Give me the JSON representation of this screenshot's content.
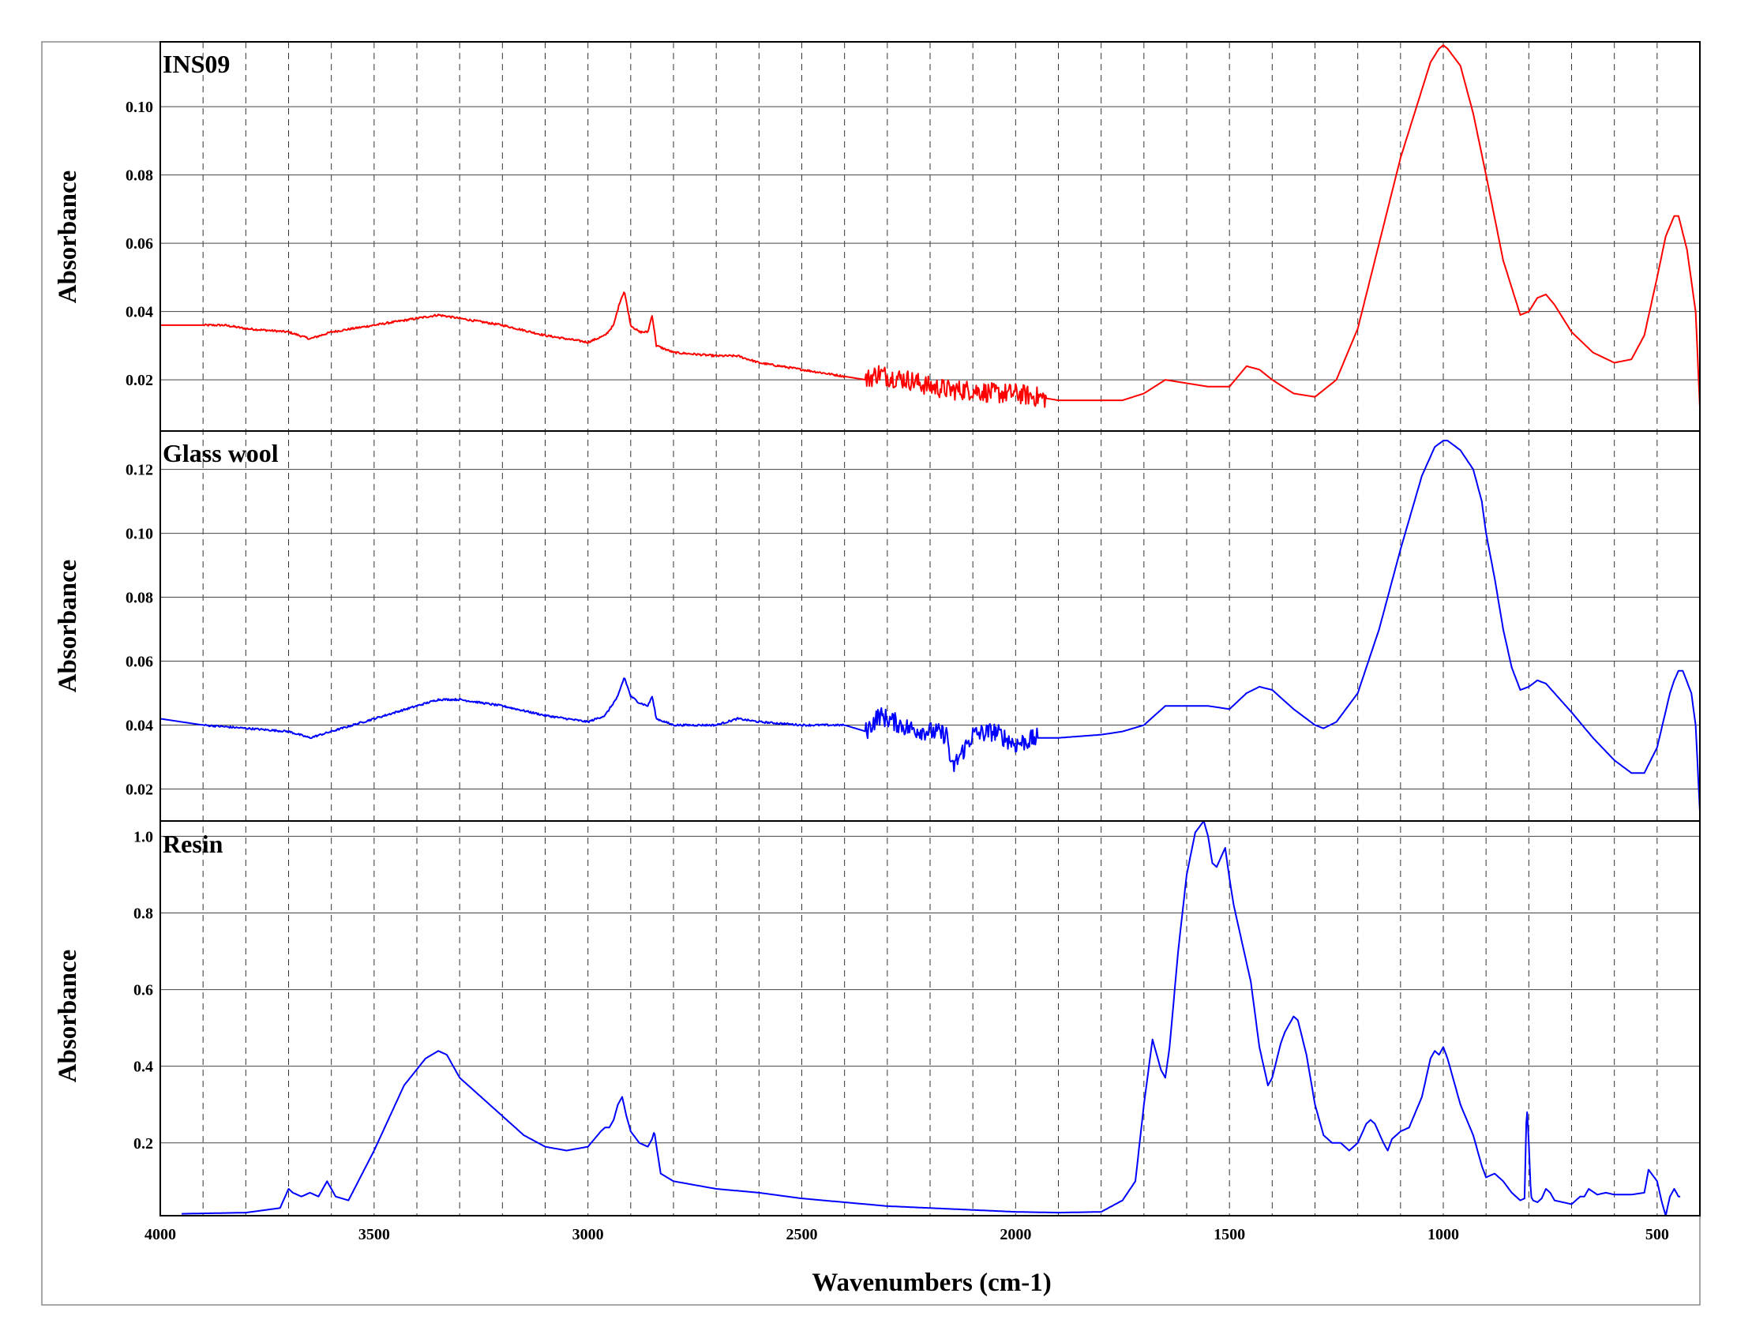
{
  "chart_data": {
    "type": "line",
    "xlabel": "Wavenumbers (cm-1)",
    "xlim": [
      4000,
      400
    ],
    "x_ticks": [
      4000,
      3500,
      3000,
      2500,
      2000,
      1500,
      1000,
      500
    ],
    "x_tick_labels": [
      "4000",
      "3500",
      "3000",
      "2500",
      "2000",
      "1500",
      "1000",
      "500"
    ],
    "grid": "dashed vertical every 100 cm-1, solid horizontal at y ticks",
    "panels": [
      {
        "label": "INS09",
        "ylabel": "Absorbance",
        "ylim": [
          0.005,
          0.119
        ],
        "y_ticks": [
          0.02,
          0.04,
          0.06,
          0.08,
          0.1
        ],
        "y_tick_labels": [
          "0.02",
          "0.04",
          "0.06",
          "0.08",
          "0.10"
        ],
        "color": "#ff0000",
        "noise_regions": [
          [
            2350,
            1930,
            0.003
          ]
        ],
        "x": [
          4000,
          3850,
          3800,
          3700,
          3650,
          3600,
          3500,
          3400,
          3350,
          3300,
          3200,
          3100,
          3000,
          2960,
          2940,
          2925,
          2915,
          2900,
          2880,
          2860,
          2850,
          2840,
          2800,
          2700,
          2650,
          2600,
          2500,
          2400,
          2350,
          2320,
          2300,
          2250,
          2200,
          2150,
          2100,
          2050,
          2000,
          1950,
          1900,
          1850,
          1800,
          1750,
          1700,
          1650,
          1600,
          1550,
          1500,
          1460,
          1430,
          1400,
          1350,
          1300,
          1250,
          1200,
          1150,
          1100,
          1050,
          1030,
          1010,
          1000,
          990,
          960,
          930,
          900,
          860,
          820,
          800,
          780,
          760,
          740,
          700,
          650,
          600,
          560,
          530,
          500,
          480,
          460,
          450,
          430,
          410,
          400
        ],
        "y": [
          0.036,
          0.036,
          0.035,
          0.034,
          0.032,
          0.034,
          0.036,
          0.038,
          0.039,
          0.038,
          0.036,
          0.033,
          0.031,
          0.033,
          0.036,
          0.043,
          0.046,
          0.036,
          0.034,
          0.034,
          0.039,
          0.03,
          0.028,
          0.027,
          0.027,
          0.025,
          0.023,
          0.021,
          0.02,
          0.022,
          0.021,
          0.02,
          0.018,
          0.017,
          0.017,
          0.016,
          0.016,
          0.015,
          0.014,
          0.014,
          0.014,
          0.014,
          0.016,
          0.02,
          0.019,
          0.018,
          0.018,
          0.024,
          0.023,
          0.02,
          0.016,
          0.015,
          0.02,
          0.035,
          0.06,
          0.085,
          0.105,
          0.113,
          0.117,
          0.118,
          0.117,
          0.112,
          0.098,
          0.08,
          0.055,
          0.039,
          0.04,
          0.044,
          0.045,
          0.042,
          0.034,
          0.028,
          0.025,
          0.026,
          0.033,
          0.05,
          0.062,
          0.068,
          0.068,
          0.058,
          0.04,
          0.012
        ]
      },
      {
        "label": "Glass wool",
        "ylabel": "Absorbance",
        "ylim": [
          0.01,
          0.132
        ],
        "y_ticks": [
          0.02,
          0.04,
          0.06,
          0.08,
          0.1,
          0.12
        ],
        "y_tick_labels": [
          "0.02",
          "0.04",
          "0.06",
          "0.08",
          "0.10",
          "0.12"
        ],
        "color": "#0000ff",
        "noise_regions": [
          [
            2350,
            1950,
            0.003
          ]
        ],
        "x": [
          4000,
          3900,
          3800,
          3700,
          3650,
          3600,
          3500,
          3400,
          3350,
          3300,
          3200,
          3100,
          3000,
          2960,
          2940,
          2930,
          2915,
          2900,
          2880,
          2860,
          2850,
          2840,
          2800,
          2700,
          2650,
          2600,
          2500,
          2400,
          2350,
          2320,
          2300,
          2250,
          2200,
          2160,
          2150,
          2100,
          2050,
          2000,
          1950,
          1900,
          1800,
          1750,
          1700,
          1650,
          1600,
          1550,
          1500,
          1460,
          1430,
          1400,
          1350,
          1300,
          1280,
          1250,
          1200,
          1150,
          1100,
          1050,
          1020,
          1000,
          990,
          960,
          930,
          910,
          900,
          880,
          860,
          840,
          820,
          800,
          780,
          760,
          740,
          700,
          650,
          600,
          560,
          530,
          500,
          470,
          460,
          450,
          440,
          420,
          410,
          400
        ],
        "y": [
          0.042,
          0.04,
          0.039,
          0.038,
          0.036,
          0.038,
          0.042,
          0.046,
          0.048,
          0.048,
          0.046,
          0.043,
          0.041,
          0.043,
          0.047,
          0.049,
          0.055,
          0.049,
          0.047,
          0.046,
          0.049,
          0.042,
          0.04,
          0.04,
          0.042,
          0.041,
          0.04,
          0.04,
          0.038,
          0.043,
          0.042,
          0.039,
          0.038,
          0.037,
          0.026,
          0.037,
          0.038,
          0.034,
          0.036,
          0.036,
          0.037,
          0.038,
          0.04,
          0.046,
          0.046,
          0.046,
          0.045,
          0.05,
          0.052,
          0.051,
          0.045,
          0.04,
          0.039,
          0.041,
          0.05,
          0.07,
          0.095,
          0.118,
          0.127,
          0.129,
          0.129,
          0.126,
          0.12,
          0.11,
          0.1,
          0.086,
          0.07,
          0.058,
          0.051,
          0.052,
          0.054,
          0.053,
          0.05,
          0.044,
          0.036,
          0.029,
          0.025,
          0.025,
          0.033,
          0.05,
          0.054,
          0.057,
          0.057,
          0.05,
          0.04,
          0.013
        ]
      },
      {
        "label": "Resin",
        "ylabel": "Absorbance",
        "ylim": [
          0.01,
          1.04
        ],
        "y_ticks": [
          0.2,
          0.4,
          0.6,
          0.8,
          1.0
        ],
        "y_tick_labels": [
          "0.2",
          "0.4",
          "0.6",
          "0.8",
          "1.0"
        ],
        "color": "#0000ff",
        "noise_regions": [],
        "x": [
          3950,
          3800,
          3720,
          3700,
          3690,
          3670,
          3650,
          3630,
          3620,
          3610,
          3590,
          3560,
          3500,
          3430,
          3380,
          3350,
          3330,
          3300,
          3250,
          3200,
          3150,
          3100,
          3050,
          3000,
          2970,
          2960,
          2950,
          2940,
          2930,
          2920,
          2910,
          2900,
          2880,
          2860,
          2850,
          2845,
          2830,
          2800,
          2700,
          2600,
          2500,
          2400,
          2300,
          2200,
          2100,
          2000,
          1900,
          1800,
          1750,
          1720,
          1700,
          1680,
          1660,
          1650,
          1640,
          1620,
          1600,
          1580,
          1560,
          1550,
          1540,
          1530,
          1510,
          1500,
          1490,
          1470,
          1450,
          1430,
          1410,
          1400,
          1380,
          1370,
          1350,
          1340,
          1320,
          1300,
          1280,
          1260,
          1240,
          1220,
          1200,
          1180,
          1170,
          1160,
          1140,
          1130,
          1120,
          1100,
          1080,
          1050,
          1030,
          1020,
          1010,
          1000,
          990,
          960,
          930,
          910,
          900,
          880,
          860,
          840,
          820,
          810,
          805,
          800,
          795,
          790,
          780,
          770,
          760,
          750,
          740,
          720,
          700,
          680,
          670,
          660,
          640,
          620,
          600,
          560,
          530,
          520,
          500,
          490,
          480,
          470,
          460,
          450,
          445
        ],
        "y": [
          0.015,
          0.018,
          0.03,
          0.08,
          0.07,
          0.06,
          0.07,
          0.06,
          0.08,
          0.1,
          0.06,
          0.05,
          0.18,
          0.35,
          0.42,
          0.44,
          0.43,
          0.37,
          0.32,
          0.27,
          0.22,
          0.19,
          0.18,
          0.19,
          0.23,
          0.24,
          0.24,
          0.26,
          0.3,
          0.32,
          0.27,
          0.23,
          0.2,
          0.19,
          0.21,
          0.23,
          0.12,
          0.1,
          0.08,
          0.07,
          0.055,
          0.045,
          0.035,
          0.03,
          0.025,
          0.02,
          0.018,
          0.02,
          0.05,
          0.1,
          0.3,
          0.47,
          0.39,
          0.37,
          0.45,
          0.7,
          0.9,
          1.01,
          1.04,
          1.0,
          0.93,
          0.92,
          0.97,
          0.89,
          0.82,
          0.72,
          0.62,
          0.45,
          0.35,
          0.37,
          0.46,
          0.49,
          0.53,
          0.52,
          0.43,
          0.3,
          0.22,
          0.2,
          0.2,
          0.18,
          0.2,
          0.25,
          0.26,
          0.25,
          0.2,
          0.18,
          0.21,
          0.23,
          0.24,
          0.32,
          0.42,
          0.44,
          0.43,
          0.45,
          0.42,
          0.3,
          0.22,
          0.14,
          0.11,
          0.12,
          0.1,
          0.07,
          0.05,
          0.055,
          0.3,
          0.2,
          0.06,
          0.05,
          0.045,
          0.055,
          0.08,
          0.07,
          0.05,
          0.045,
          0.04,
          0.06,
          0.06,
          0.08,
          0.065,
          0.07,
          0.065,
          0.065,
          0.07,
          0.13,
          0.1,
          0.05,
          0.01,
          0.06,
          0.08,
          0.06,
          0.06
        ]
      }
    ]
  }
}
